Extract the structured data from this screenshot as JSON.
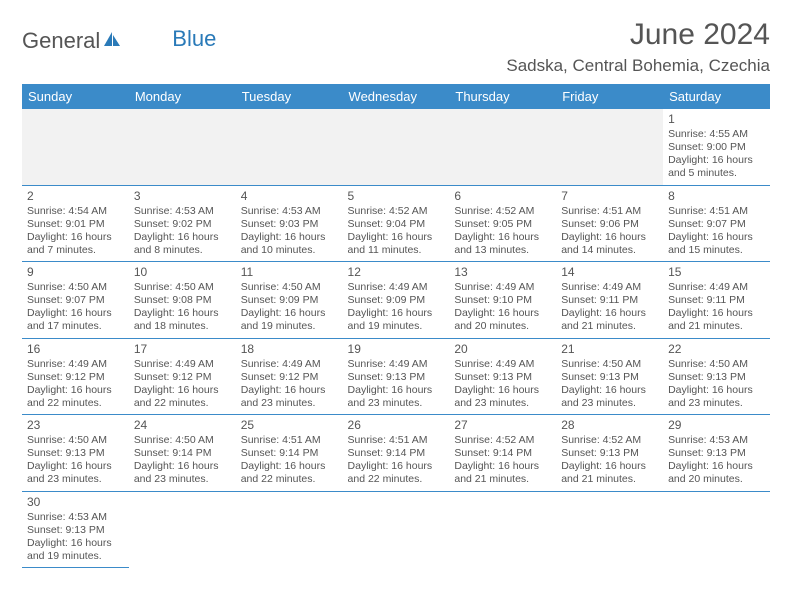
{
  "brand": {
    "general": "General",
    "blue": "Blue"
  },
  "title": "June 2024",
  "location": "Sadska, Central Bohemia, Czechia",
  "colors": {
    "header_bg": "#3b8bc9",
    "header_text": "#ffffff",
    "border": "#3b8bc9",
    "text": "#555555"
  },
  "weekdays": [
    "Sunday",
    "Monday",
    "Tuesday",
    "Wednesday",
    "Thursday",
    "Friday",
    "Saturday"
  ],
  "weeks": [
    [
      null,
      null,
      null,
      null,
      null,
      null,
      {
        "day": "1",
        "sunrise": "Sunrise: 4:55 AM",
        "sunset": "Sunset: 9:00 PM",
        "daylight1": "Daylight: 16 hours",
        "daylight2": "and 5 minutes."
      }
    ],
    [
      {
        "day": "2",
        "sunrise": "Sunrise: 4:54 AM",
        "sunset": "Sunset: 9:01 PM",
        "daylight1": "Daylight: 16 hours",
        "daylight2": "and 7 minutes."
      },
      {
        "day": "3",
        "sunrise": "Sunrise: 4:53 AM",
        "sunset": "Sunset: 9:02 PM",
        "daylight1": "Daylight: 16 hours",
        "daylight2": "and 8 minutes."
      },
      {
        "day": "4",
        "sunrise": "Sunrise: 4:53 AM",
        "sunset": "Sunset: 9:03 PM",
        "daylight1": "Daylight: 16 hours",
        "daylight2": "and 10 minutes."
      },
      {
        "day": "5",
        "sunrise": "Sunrise: 4:52 AM",
        "sunset": "Sunset: 9:04 PM",
        "daylight1": "Daylight: 16 hours",
        "daylight2": "and 11 minutes."
      },
      {
        "day": "6",
        "sunrise": "Sunrise: 4:52 AM",
        "sunset": "Sunset: 9:05 PM",
        "daylight1": "Daylight: 16 hours",
        "daylight2": "and 13 minutes."
      },
      {
        "day": "7",
        "sunrise": "Sunrise: 4:51 AM",
        "sunset": "Sunset: 9:06 PM",
        "daylight1": "Daylight: 16 hours",
        "daylight2": "and 14 minutes."
      },
      {
        "day": "8",
        "sunrise": "Sunrise: 4:51 AM",
        "sunset": "Sunset: 9:07 PM",
        "daylight1": "Daylight: 16 hours",
        "daylight2": "and 15 minutes."
      }
    ],
    [
      {
        "day": "9",
        "sunrise": "Sunrise: 4:50 AM",
        "sunset": "Sunset: 9:07 PM",
        "daylight1": "Daylight: 16 hours",
        "daylight2": "and 17 minutes."
      },
      {
        "day": "10",
        "sunrise": "Sunrise: 4:50 AM",
        "sunset": "Sunset: 9:08 PM",
        "daylight1": "Daylight: 16 hours",
        "daylight2": "and 18 minutes."
      },
      {
        "day": "11",
        "sunrise": "Sunrise: 4:50 AM",
        "sunset": "Sunset: 9:09 PM",
        "daylight1": "Daylight: 16 hours",
        "daylight2": "and 19 minutes."
      },
      {
        "day": "12",
        "sunrise": "Sunrise: 4:49 AM",
        "sunset": "Sunset: 9:09 PM",
        "daylight1": "Daylight: 16 hours",
        "daylight2": "and 19 minutes."
      },
      {
        "day": "13",
        "sunrise": "Sunrise: 4:49 AM",
        "sunset": "Sunset: 9:10 PM",
        "daylight1": "Daylight: 16 hours",
        "daylight2": "and 20 minutes."
      },
      {
        "day": "14",
        "sunrise": "Sunrise: 4:49 AM",
        "sunset": "Sunset: 9:11 PM",
        "daylight1": "Daylight: 16 hours",
        "daylight2": "and 21 minutes."
      },
      {
        "day": "15",
        "sunrise": "Sunrise: 4:49 AM",
        "sunset": "Sunset: 9:11 PM",
        "daylight1": "Daylight: 16 hours",
        "daylight2": "and 21 minutes."
      }
    ],
    [
      {
        "day": "16",
        "sunrise": "Sunrise: 4:49 AM",
        "sunset": "Sunset: 9:12 PM",
        "daylight1": "Daylight: 16 hours",
        "daylight2": "and 22 minutes."
      },
      {
        "day": "17",
        "sunrise": "Sunrise: 4:49 AM",
        "sunset": "Sunset: 9:12 PM",
        "daylight1": "Daylight: 16 hours",
        "daylight2": "and 22 minutes."
      },
      {
        "day": "18",
        "sunrise": "Sunrise: 4:49 AM",
        "sunset": "Sunset: 9:12 PM",
        "daylight1": "Daylight: 16 hours",
        "daylight2": "and 23 minutes."
      },
      {
        "day": "19",
        "sunrise": "Sunrise: 4:49 AM",
        "sunset": "Sunset: 9:13 PM",
        "daylight1": "Daylight: 16 hours",
        "daylight2": "and 23 minutes."
      },
      {
        "day": "20",
        "sunrise": "Sunrise: 4:49 AM",
        "sunset": "Sunset: 9:13 PM",
        "daylight1": "Daylight: 16 hours",
        "daylight2": "and 23 minutes."
      },
      {
        "day": "21",
        "sunrise": "Sunrise: 4:50 AM",
        "sunset": "Sunset: 9:13 PM",
        "daylight1": "Daylight: 16 hours",
        "daylight2": "and 23 minutes."
      },
      {
        "day": "22",
        "sunrise": "Sunrise: 4:50 AM",
        "sunset": "Sunset: 9:13 PM",
        "daylight1": "Daylight: 16 hours",
        "daylight2": "and 23 minutes."
      }
    ],
    [
      {
        "day": "23",
        "sunrise": "Sunrise: 4:50 AM",
        "sunset": "Sunset: 9:13 PM",
        "daylight1": "Daylight: 16 hours",
        "daylight2": "and 23 minutes."
      },
      {
        "day": "24",
        "sunrise": "Sunrise: 4:50 AM",
        "sunset": "Sunset: 9:14 PM",
        "daylight1": "Daylight: 16 hours",
        "daylight2": "and 23 minutes."
      },
      {
        "day": "25",
        "sunrise": "Sunrise: 4:51 AM",
        "sunset": "Sunset: 9:14 PM",
        "daylight1": "Daylight: 16 hours",
        "daylight2": "and 22 minutes."
      },
      {
        "day": "26",
        "sunrise": "Sunrise: 4:51 AM",
        "sunset": "Sunset: 9:14 PM",
        "daylight1": "Daylight: 16 hours",
        "daylight2": "and 22 minutes."
      },
      {
        "day": "27",
        "sunrise": "Sunrise: 4:52 AM",
        "sunset": "Sunset: 9:14 PM",
        "daylight1": "Daylight: 16 hours",
        "daylight2": "and 21 minutes."
      },
      {
        "day": "28",
        "sunrise": "Sunrise: 4:52 AM",
        "sunset": "Sunset: 9:13 PM",
        "daylight1": "Daylight: 16 hours",
        "daylight2": "and 21 minutes."
      },
      {
        "day": "29",
        "sunrise": "Sunrise: 4:53 AM",
        "sunset": "Sunset: 9:13 PM",
        "daylight1": "Daylight: 16 hours",
        "daylight2": "and 20 minutes."
      }
    ],
    [
      {
        "day": "30",
        "sunrise": "Sunrise: 4:53 AM",
        "sunset": "Sunset: 9:13 PM",
        "daylight1": "Daylight: 16 hours",
        "daylight2": "and 19 minutes."
      },
      null,
      null,
      null,
      null,
      null,
      null
    ]
  ]
}
